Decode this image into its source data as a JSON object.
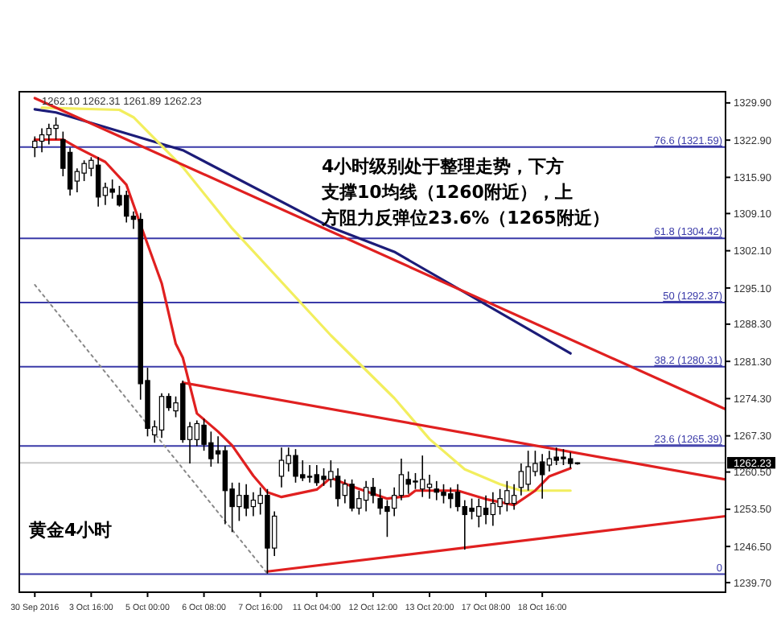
{
  "chart_data": {
    "type": "candlestick",
    "categories": [
      "30 Sep 2016",
      null,
      null,
      null,
      null,
      null,
      null,
      null,
      "3 Oct 16:00",
      null,
      null,
      null,
      null,
      null,
      null,
      null,
      "5 Oct 00:00",
      null,
      null,
      null,
      null,
      null,
      null,
      null,
      "6 Oct 08:00",
      null,
      null,
      null,
      null,
      null,
      null,
      null,
      "7 Oct 16:00",
      null,
      null,
      null,
      null,
      null,
      null,
      null,
      "11 Oct 04:00",
      null,
      null,
      null,
      null,
      null,
      null,
      null,
      "12 Oct 12:00",
      null,
      null,
      null,
      null,
      null,
      null,
      null,
      "13 Oct 20:00",
      null,
      null,
      null,
      null,
      null,
      null,
      null,
      "17 Oct 08:00",
      null,
      null,
      null,
      null,
      null,
      null,
      null,
      "18 Oct 16:00",
      null,
      null,
      null,
      null,
      null,
      null,
      null,
      null,
      null,
      null,
      null,
      null,
      null,
      null,
      null,
      null,
      null,
      null,
      null,
      null,
      null,
      null,
      null,
      null,
      null,
      null
    ],
    "ohlc": [
      [
        1321.5,
        1323.6,
        1319.7,
        1322.7
      ],
      [
        1322.7,
        1325.1,
        1320.6,
        1323.9
      ],
      [
        1323.9,
        1326.0,
        1322.1,
        1325.1
      ],
      [
        1325.1,
        1327.2,
        1323.0,
        1325.7
      ],
      [
        1323.0,
        1324.5,
        1316.1,
        1317.6
      ],
      [
        1320.6,
        1321.5,
        1312.5,
        1313.7
      ],
      [
        1315.2,
        1317.6,
        1313.1,
        1317.0
      ],
      [
        1316.7,
        1319.1,
        1315.2,
        1318.5
      ],
      [
        1317.6,
        1319.7,
        1316.1,
        1319.1
      ],
      [
        1318.2,
        1319.7,
        1310.4,
        1312.2
      ],
      [
        1312.5,
        1314.9,
        1310.7,
        1314.0
      ],
      [
        1313.7,
        1315.5,
        1311.9,
        1313.1
      ],
      [
        1312.5,
        1314.3,
        1310.4,
        1310.7
      ],
      [
        1312.5,
        1313.4,
        1307.4,
        1308.6
      ],
      [
        1308.6,
        1309.5,
        1306.2,
        1308.0
      ],
      [
        1308.0,
        1309.2,
        1274.1,
        1277.1
      ],
      [
        1277.7,
        1280.1,
        1267.2,
        1268.7
      ],
      [
        1267.5,
        1270.2,
        1266.0,
        1269.0
      ],
      [
        1268.4,
        1275.3,
        1266.9,
        1274.7
      ],
      [
        1274.7,
        1275.3,
        1272.0,
        1272.6
      ],
      [
        1272.0,
        1274.7,
        1270.8,
        1273.5
      ],
      [
        1277.1,
        1277.7,
        1266.0,
        1266.6
      ],
      [
        1266.6,
        1269.9,
        1262.1,
        1269.0
      ],
      [
        1266.6,
        1270.2,
        1265.4,
        1269.6
      ],
      [
        1269.3,
        1270.5,
        1264.5,
        1265.7
      ],
      [
        1266.0,
        1268.1,
        1261.5,
        1263.0
      ],
      [
        1264.5,
        1267.2,
        1262.1,
        1263.9
      ],
      [
        1264.5,
        1265.4,
        1250.7,
        1257.0
      ],
      [
        1257.3,
        1258.5,
        1249.2,
        1254.0
      ],
      [
        1254.0,
        1258.5,
        1251.3,
        1256.1
      ],
      [
        1256.1,
        1258.2,
        1252.2,
        1253.7
      ],
      [
        1254.0,
        1256.7,
        1252.2,
        1255.2
      ],
      [
        1254.6,
        1257.6,
        1252.5,
        1256.1
      ],
      [
        1256.1,
        1257.3,
        1241.4,
        1246.2
      ],
      [
        1246.2,
        1253.1,
        1244.7,
        1252.2
      ],
      [
        1259.7,
        1265.1,
        1257.6,
        1262.7
      ],
      [
        1262.1,
        1265.1,
        1260.6,
        1263.6
      ],
      [
        1263.6,
        1264.8,
        1258.5,
        1259.7
      ],
      [
        1260.0,
        1262.7,
        1258.8,
        1259.4
      ],
      [
        1259.7,
        1261.8,
        1258.5,
        1259.7
      ],
      [
        1260.0,
        1261.8,
        1257.9,
        1258.5
      ],
      [
        1259.7,
        1261.2,
        1257.9,
        1259.1
      ],
      [
        1259.1,
        1262.7,
        1257.6,
        1260.6
      ],
      [
        1259.7,
        1261.2,
        1254.0,
        1255.5
      ],
      [
        1256.1,
        1259.1,
        1254.6,
        1258.2
      ],
      [
        1258.2,
        1259.1,
        1253.1,
        1253.7
      ],
      [
        1253.7,
        1257.0,
        1252.5,
        1255.5
      ],
      [
        1255.2,
        1258.8,
        1253.1,
        1257.6
      ],
      [
        1257.6,
        1259.4,
        1254.6,
        1256.1
      ],
      [
        1255.5,
        1257.3,
        1252.5,
        1253.7
      ],
      [
        1254.0,
        1255.2,
        1248.3,
        1253.1
      ],
      [
        1253.7,
        1257.6,
        1252.2,
        1256.1
      ],
      [
        1256.1,
        1263.0,
        1255.2,
        1260.0
      ],
      [
        1259.1,
        1260.6,
        1256.4,
        1258.2
      ],
      [
        1258.8,
        1260.3,
        1257.3,
        1258.8
      ],
      [
        1257.3,
        1263.6,
        1255.8,
        1259.1
      ],
      [
        1257.6,
        1260.0,
        1255.5,
        1258.2
      ],
      [
        1257.3,
        1258.8,
        1255.2,
        1256.7
      ],
      [
        1256.7,
        1258.2,
        1254.6,
        1256.1
      ],
      [
        1256.4,
        1257.6,
        1253.7,
        1255.5
      ],
      [
        1256.7,
        1258.2,
        1253.1,
        1254.0
      ],
      [
        1254.0,
        1255.2,
        1245.9,
        1252.5
      ],
      [
        1253.7,
        1255.5,
        1251.6,
        1253.1
      ],
      [
        1252.2,
        1255.5,
        1250.1,
        1254.0
      ],
      [
        1253.7,
        1256.1,
        1250.7,
        1252.5
      ],
      [
        1252.5,
        1256.7,
        1250.4,
        1254.6
      ],
      [
        1254.0,
        1257.3,
        1252.5,
        1255.5
      ],
      [
        1254.6,
        1258.8,
        1253.1,
        1257.0
      ],
      [
        1254.6,
        1258.2,
        1253.4,
        1256.1
      ],
      [
        1257.6,
        1262.1,
        1256.1,
        1260.6
      ],
      [
        1258.2,
        1264.5,
        1257.0,
        1261.5
      ],
      [
        1260.6,
        1264.5,
        1259.7,
        1262.1
      ],
      [
        1262.4,
        1263.9,
        1255.5,
        1260.0
      ],
      [
        1261.8,
        1264.5,
        1260.6,
        1263.0
      ],
      [
        1263.3,
        1265.1,
        1261.8,
        1262.7
      ],
      [
        1263.3,
        1264.8,
        1261.8,
        1263.0
      ],
      [
        1263.0,
        1264.2,
        1261.2,
        1262.1
      ],
      [
        1262.1,
        1262.31,
        1261.89,
        1262.23
      ],
      null,
      null,
      null,
      null,
      null,
      null,
      null,
      null,
      null,
      null,
      null,
      null,
      null,
      null,
      null,
      null,
      null,
      null,
      null,
      null,
      null
    ],
    "series": [
      {
        "type": "line",
        "color": "#1c1c78",
        "values": [
          1328.7,
          null,
          null,
          1328.1,
          null,
          null,
          null,
          null,
          null,
          null,
          null,
          null,
          null,
          null,
          null,
          null,
          null,
          null,
          null,
          null,
          null,
          1321.0,
          null,
          null,
          null,
          null,
          null,
          null,
          null,
          null,
          null,
          null,
          null,
          null,
          null,
          null,
          null,
          null,
          null,
          null,
          null,
          null,
          1306.5,
          null,
          null,
          null,
          null,
          null,
          null,
          null,
          null,
          1301.9,
          null,
          null,
          null,
          null,
          null,
          null,
          null,
          null,
          null,
          null,
          null,
          null,
          null,
          null,
          null,
          null,
          null,
          null,
          null,
          null,
          null,
          null,
          null,
          null,
          1282.8,
          null,
          null,
          null,
          null,
          null,
          null,
          null,
          null,
          null,
          null,
          null,
          null,
          null,
          null,
          null,
          null,
          null,
          null,
          null,
          null,
          null,
          null
        ]
      },
      {
        "type": "line",
        "color": "#f2ee5e",
        "values": [
          null,
          1329.0,
          null,
          null,
          null,
          null,
          null,
          null,
          null,
          null,
          null,
          null,
          1328.6,
          null,
          1327.2,
          null,
          null,
          null,
          null,
          null,
          null,
          1317.8,
          null,
          null,
          null,
          null,
          null,
          null,
          1306.3,
          null,
          null,
          null,
          null,
          null,
          null,
          null,
          null,
          null,
          null,
          null,
          null,
          null,
          1286.2,
          null,
          null,
          null,
          null,
          null,
          null,
          null,
          null,
          1274.4,
          null,
          null,
          null,
          null,
          1266.7,
          null,
          null,
          null,
          null,
          1261.0,
          null,
          null,
          null,
          null,
          1258.2,
          null,
          null,
          1257.0,
          null,
          null,
          1257.0,
          null,
          null,
          null,
          1257.0,
          null,
          null,
          null,
          null,
          null,
          null,
          null,
          null,
          null,
          null,
          null,
          null,
          null,
          null,
          null,
          null,
          null,
          null,
          null,
          null,
          null,
          null
        ]
      },
      {
        "type": "line",
        "color": "#e02020",
        "values": [
          1323.0,
          null,
          null,
          null,
          1323.0,
          null,
          1321.5,
          null,
          null,
          null,
          1318.8,
          null,
          null,
          1314.5,
          null,
          1307.0,
          null,
          null,
          1296.0,
          null,
          1284.6,
          1282.0,
          null,
          1271.5,
          null,
          null,
          1268.1,
          null,
          1265.5,
          null,
          null,
          1259.8,
          null,
          1256.7,
          null,
          1255.8,
          null,
          null,
          null,
          null,
          1257.2,
          null,
          1259.4,
          null,
          null,
          1257.8,
          null,
          null,
          null,
          null,
          1255.5,
          null,
          null,
          1256.0,
          1257.0,
          null,
          null,
          null,
          null,
          null,
          1257.0,
          null,
          null,
          null,
          1255.4,
          null,
          null,
          null,
          1254.3,
          null,
          null,
          1257.0,
          null,
          1259.7,
          null,
          null,
          1261.2,
          null,
          null,
          null,
          null,
          null,
          null,
          null,
          null,
          null,
          null,
          null,
          null,
          null,
          null,
          null,
          null,
          null,
          null,
          null,
          null,
          null,
          null
        ]
      },
      {
        "type": "line",
        "color": "#e02020",
        "values": [
          1330.8,
          null,
          null,
          null,
          null,
          null,
          null,
          null,
          null,
          null,
          null,
          null,
          null,
          null,
          null,
          null,
          null,
          null,
          null,
          null,
          null,
          null,
          null,
          null,
          null,
          null,
          null,
          null,
          null,
          null,
          null,
          null,
          null,
          null,
          null,
          null,
          null,
          null,
          null,
          null,
          null,
          null,
          null,
          null,
          null,
          null,
          null,
          null,
          null,
          null,
          null,
          null,
          null,
          null,
          null,
          null,
          null,
          null,
          null,
          null,
          null,
          null,
          null,
          null,
          null,
          null,
          null,
          null,
          null,
          null,
          null,
          null,
          null,
          null,
          null,
          null,
          null,
          null,
          null,
          null,
          null,
          null,
          null,
          null,
          null,
          null,
          null,
          null,
          null,
          null,
          null,
          null,
          null,
          null,
          null,
          null,
          null,
          null,
          1272.3
        ]
      },
      {
        "type": "line",
        "color": "#e02020",
        "values": [
          null,
          null,
          null,
          null,
          null,
          null,
          null,
          null,
          null,
          null,
          null,
          null,
          null,
          null,
          null,
          null,
          null,
          null,
          null,
          null,
          null,
          1277.3,
          null,
          null,
          null,
          null,
          null,
          null,
          null,
          null,
          null,
          null,
          null,
          null,
          null,
          null,
          null,
          null,
          null,
          null,
          null,
          null,
          null,
          null,
          null,
          null,
          null,
          null,
          null,
          null,
          null,
          null,
          null,
          null,
          null,
          null,
          null,
          null,
          null,
          null,
          null,
          null,
          null,
          null,
          null,
          null,
          null,
          null,
          null,
          null,
          null,
          null,
          null,
          null,
          null,
          null,
          null,
          null,
          null,
          null,
          null,
          null,
          null,
          null,
          null,
          null,
          null,
          null,
          null,
          null,
          null,
          null,
          null,
          null,
          null,
          null,
          null,
          null,
          1259.1
        ]
      },
      {
        "type": "line",
        "color": "#e02020",
        "values": [
          null,
          null,
          null,
          null,
          null,
          null,
          null,
          null,
          null,
          null,
          null,
          null,
          null,
          null,
          null,
          null,
          null,
          null,
          null,
          null,
          null,
          null,
          null,
          null,
          null,
          null,
          null,
          null,
          null,
          null,
          null,
          null,
          null,
          1241.8,
          null,
          null,
          null,
          null,
          null,
          null,
          null,
          null,
          null,
          null,
          null,
          null,
          null,
          null,
          null,
          null,
          null,
          null,
          null,
          null,
          null,
          null,
          null,
          null,
          null,
          null,
          null,
          null,
          null,
          null,
          null,
          null,
          null,
          null,
          null,
          null,
          null,
          null,
          null,
          null,
          null,
          null,
          null,
          null,
          null,
          null,
          null,
          null,
          null,
          null,
          null,
          null,
          null,
          null,
          null,
          null,
          null,
          null,
          null,
          null,
          null,
          null,
          null,
          null,
          1252.2
        ]
      },
      {
        "type": "line",
        "color": "#888888",
        "line_style": "dotted",
        "values": [
          1295.7,
          null,
          null,
          null,
          null,
          null,
          null,
          null,
          null,
          null,
          null,
          null,
          null,
          null,
          null,
          null,
          null,
          null,
          null,
          null,
          null,
          null,
          null,
          null,
          null,
          null,
          null,
          null,
          null,
          null,
          null,
          null,
          null,
          1241.4,
          null,
          null,
          null,
          null,
          null,
          null,
          null,
          null,
          null,
          null,
          null,
          null,
          null,
          null,
          null,
          null,
          null,
          null,
          null,
          null,
          null,
          null,
          null,
          null,
          null,
          null,
          null,
          null,
          null,
          null,
          null,
          null,
          null,
          null,
          null,
          null,
          null,
          null,
          null,
          null,
          null,
          null,
          null,
          null,
          null,
          null,
          null,
          null,
          null,
          null,
          null,
          null,
          null,
          null,
          null,
          null,
          null,
          null,
          null,
          null,
          null,
          null,
          null,
          null,
          null
        ]
      }
    ],
    "ref_lines": [
      {
        "axis": "y",
        "value": 1321.59,
        "label": "76.6 (1321.59)",
        "color": "#3a3aa8"
      },
      {
        "axis": "y",
        "value": 1304.42,
        "label": "61.8 (1304.42)",
        "color": "#3a3aa8"
      },
      {
        "axis": "y",
        "value": 1292.37,
        "label": "50 (1292.37)",
        "color": "#3a3aa8"
      },
      {
        "axis": "y",
        "value": 1280.31,
        "label": "38.2 (1280.31)",
        "color": "#3a3aa8"
      },
      {
        "axis": "y",
        "value": 1265.39,
        "label": "23.6 (1265.39)",
        "color": "#3a3aa8"
      },
      {
        "axis": "y",
        "value": 1241.3,
        "color": "#3a3aa8"
      },
      {
        "axis": "y",
        "value": 1262.23,
        "label": "1262.23",
        "color": "#c8c8c8"
      }
    ],
    "ylim": [
      1237.9,
      1332.0
    ],
    "yticks": [
      {
        "value": 1329.9,
        "label": "1329.90"
      },
      {
        "value": 1322.9,
        "label": "1322.90"
      },
      {
        "value": 1315.9,
        "label": "1315.90"
      },
      {
        "value": 1309.1,
        "label": "1309.10"
      },
      {
        "value": 1302.1,
        "label": "1302.10"
      },
      {
        "value": 1295.1,
        "label": "1295.10"
      },
      {
        "value": 1288.3,
        "label": "1288.30"
      },
      {
        "value": 1281.3,
        "label": "1281.30"
      },
      {
        "value": 1274.3,
        "label": "1274.30"
      },
      {
        "value": 1267.3,
        "label": "1267.30"
      },
      {
        "value": 1260.5,
        "label": "1260.50"
      },
      {
        "value": 1253.5,
        "label": "1253.50"
      },
      {
        "value": 1246.5,
        "label": "1246.50"
      },
      {
        "value": 1239.7,
        "label": "1239.70"
      }
    ],
    "annotations": [
      "1262.10 1262.31 1261.89 1262.23",
      "4小时级别处于整理走势，下方",
      "支撑10均线（1260附近），上",
      "方阻力反弹位23.6%（1265附近）",
      "黄金4小时",
      {
        "text": "0",
        "y": 1241.3
      }
    ]
  }
}
